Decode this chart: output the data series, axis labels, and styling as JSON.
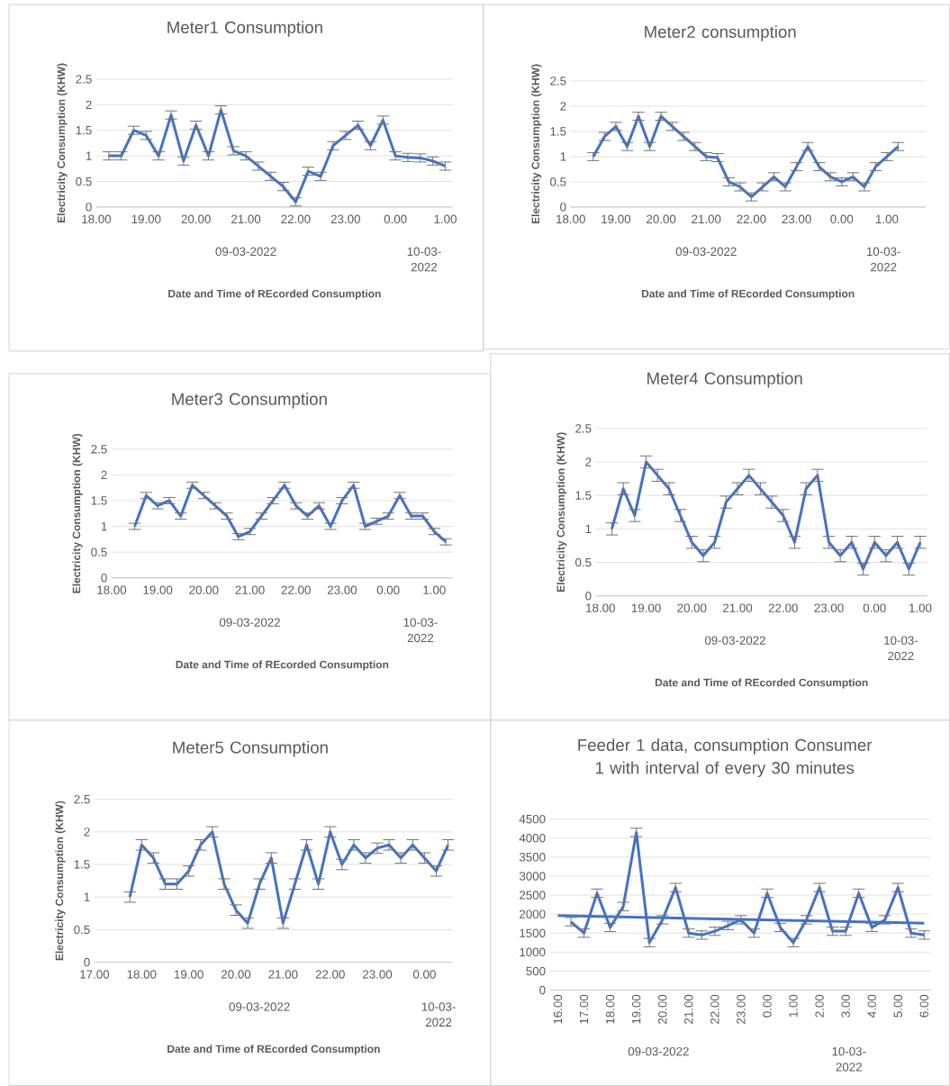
{
  "chart_data": [
    {
      "type": "line",
      "title": "Meter1 Consumption",
      "xlabel": "Date and Time of REcorded Consumption",
      "ylabel": "Electricity Consumption (KHW)",
      "xlim": [
        "2022-03-09T18:00",
        "2022-03-10T01:09"
      ],
      "ylim": [
        0,
        2.5
      ],
      "grid": "y",
      "xticks": [
        {
          "value": "2022-03-09T18:00",
          "label": "18.00"
        },
        {
          "value": "2022-03-09T19:00",
          "label": "19.00"
        },
        {
          "value": "2022-03-09T20:00",
          "label": "20.00"
        },
        {
          "value": "2022-03-09T21:00",
          "label": "21.00"
        },
        {
          "value": "2022-03-09T22:00",
          "label": "22.00"
        },
        {
          "value": "2022-03-09T23:00",
          "label": "23.00"
        },
        {
          "value": "2022-03-10T00:00",
          "label": "0.00"
        },
        {
          "value": "2022-03-10T01:00",
          "label": "1.00"
        }
      ],
      "yticks": [
        0,
        0.5,
        1,
        1.5,
        2,
        2.5
      ],
      "annotations": [
        "09-03-2022",
        "10-03-2022"
      ],
      "series": [
        {
          "color": "#4472c4",
          "x": [
            "2022-03-09T18:15",
            "2022-03-09T18:30",
            "2022-03-09T18:45",
            "2022-03-09T19:00",
            "2022-03-09T19:15",
            "2022-03-09T19:30",
            "2022-03-09T19:45",
            "2022-03-09T20:00",
            "2022-03-09T20:15",
            "2022-03-09T20:30",
            "2022-03-09T20:45",
            "2022-03-09T21:00",
            "2022-03-09T21:15",
            "2022-03-09T21:30",
            "2022-03-09T21:45",
            "2022-03-09T22:00",
            "2022-03-09T22:15",
            "2022-03-09T22:30",
            "2022-03-09T22:45",
            "2022-03-09T23:00",
            "2022-03-09T23:15",
            "2022-03-09T23:30",
            "2022-03-09T23:45",
            "2022-03-10T00:00",
            "2022-03-10T00:15",
            "2022-03-10T00:30",
            "2022-03-10T00:45",
            "2022-03-10T01:00"
          ],
          "values": [
            1.0,
            1.0,
            1.5,
            1.4,
            1.0,
            1.8,
            0.9,
            1.6,
            1.0,
            1.9,
            1.1,
            1.0,
            0.8,
            0.6,
            0.4,
            0.1,
            0.7,
            0.6,
            1.2,
            1.4,
            1.6,
            1.2,
            1.7,
            1.0,
            0.97,
            0.96,
            0.9,
            0.8
          ],
          "errors": [
            0.08,
            0.08,
            0.08,
            0.08,
            0.08,
            0.08,
            0.08,
            0.08,
            0.08,
            0.08,
            0.08,
            0.08,
            0.08,
            0.08,
            0.08,
            0.08,
            0.08,
            0.08,
            0.08,
            0.08,
            0.08,
            0.08,
            0.08,
            0.08,
            0.08,
            0.08,
            0.08,
            0.08
          ]
        }
      ]
    },
    {
      "type": "line",
      "title": "Meter2 consumption",
      "xlabel": "Date and Time of REcorded Consumption",
      "ylabel": "Electricity Consumption (KHW)",
      "xlim": [
        "2022-03-09T18:00",
        "2022-03-10T01:51"
      ],
      "ylim": [
        0,
        2.5
      ],
      "grid": "y",
      "xticks": [
        {
          "value": "2022-03-09T18:00",
          "label": "18.00"
        },
        {
          "value": "2022-03-09T19:00",
          "label": "19.00"
        },
        {
          "value": "2022-03-09T20:00",
          "label": "20.00"
        },
        {
          "value": "2022-03-09T21:00",
          "label": "21.00"
        },
        {
          "value": "2022-03-09T22:00",
          "label": "22.00"
        },
        {
          "value": "2022-03-09T23:00",
          "label": "23.00"
        },
        {
          "value": "2022-03-10T00:00",
          "label": "0.00"
        },
        {
          "value": "2022-03-10T01:00",
          "label": "1.00"
        }
      ],
      "yticks": [
        0,
        0.5,
        1,
        1.5,
        2,
        2.5
      ],
      "annotations": [
        "09-03-2022",
        "10-03-2022"
      ],
      "series": [
        {
          "color": "#4472c4",
          "x": [
            "2022-03-09T18:30",
            "2022-03-09T18:45",
            "2022-03-09T19:00",
            "2022-03-09T19:15",
            "2022-03-09T19:30",
            "2022-03-09T19:45",
            "2022-03-09T20:00",
            "2022-03-09T20:15",
            "2022-03-09T20:30",
            "2022-03-09T20:45",
            "2022-03-09T21:00",
            "2022-03-09T21:15",
            "2022-03-09T21:30",
            "2022-03-09T21:45",
            "2022-03-09T22:00",
            "2022-03-09T22:15",
            "2022-03-09T22:30",
            "2022-03-09T22:45",
            "2022-03-09T23:00",
            "2022-03-09T23:15",
            "2022-03-09T23:30",
            "2022-03-09T23:45",
            "2022-03-10T00:00",
            "2022-03-10T00:15",
            "2022-03-10T00:30",
            "2022-03-10T00:45",
            "2022-03-10T01:00",
            "2022-03-10T01:15"
          ],
          "values": [
            1.0,
            1.4,
            1.6,
            1.2,
            1.8,
            1.2,
            1.8,
            1.6,
            1.4,
            1.2,
            1.0,
            0.98,
            0.5,
            0.4,
            0.2,
            0.4,
            0.6,
            0.4,
            0.8,
            1.2,
            0.8,
            0.6,
            0.5,
            0.6,
            0.4,
            0.8,
            1.0,
            1.2
          ],
          "errors": [
            0.08,
            0.08,
            0.08,
            0.08,
            0.08,
            0.08,
            0.08,
            0.08,
            0.08,
            0.08,
            0.08,
            0.08,
            0.08,
            0.08,
            0.08,
            0.08,
            0.08,
            0.08,
            0.08,
            0.08,
            0.08,
            0.08,
            0.08,
            0.08,
            0.08,
            0.08,
            0.08,
            0.08
          ]
        }
      ]
    },
    {
      "type": "line",
      "title": "Meter3 Consumption",
      "xlabel": "Date and Time of REcorded Consumption",
      "ylabel": "Electricity Consumption (KHW)",
      "xlim": [
        "2022-03-09T18:00",
        "2022-03-10T01:24"
      ],
      "ylim": [
        0,
        2.5
      ],
      "grid": "y",
      "xticks": [
        {
          "value": "2022-03-09T18:00",
          "label": "18.00"
        },
        {
          "value": "2022-03-09T19:00",
          "label": "19.00"
        },
        {
          "value": "2022-03-09T20:00",
          "label": "20.00"
        },
        {
          "value": "2022-03-09T21:00",
          "label": "21.00"
        },
        {
          "value": "2022-03-09T22:00",
          "label": "22.00"
        },
        {
          "value": "2022-03-09T23:00",
          "label": "23.00"
        },
        {
          "value": "2022-03-10T00:00",
          "label": "0.00"
        },
        {
          "value": "2022-03-10T01:00",
          "label": "1.00"
        }
      ],
      "yticks": [
        0,
        0.5,
        1,
        1.5,
        2,
        2.5
      ],
      "annotations": [
        "09-03-2022",
        "10-03-2022"
      ],
      "series": [
        {
          "color": "#4472c4",
          "x": [
            "2022-03-09T18:30",
            "2022-03-09T18:45",
            "2022-03-09T19:00",
            "2022-03-09T19:15",
            "2022-03-09T19:30",
            "2022-03-09T19:45",
            "2022-03-09T20:00",
            "2022-03-09T20:15",
            "2022-03-09T20:30",
            "2022-03-09T20:45",
            "2022-03-09T21:00",
            "2022-03-09T21:15",
            "2022-03-09T21:30",
            "2022-03-09T21:45",
            "2022-03-09T22:00",
            "2022-03-09T22:15",
            "2022-03-09T22:30",
            "2022-03-09T22:45",
            "2022-03-09T23:00",
            "2022-03-09T23:15",
            "2022-03-09T23:30",
            "2022-03-09T23:45",
            "2022-03-10T00:00",
            "2022-03-10T00:15",
            "2022-03-10T00:30",
            "2022-03-10T00:45",
            "2022-03-10T01:00",
            "2022-03-10T01:15"
          ],
          "values": [
            1.0,
            1.6,
            1.4,
            1.5,
            1.2,
            1.8,
            1.6,
            1.4,
            1.2,
            0.8,
            0.9,
            1.2,
            1.5,
            1.8,
            1.4,
            1.2,
            1.4,
            1.0,
            1.5,
            1.8,
            1.0,
            1.1,
            1.2,
            1.6,
            1.2,
            1.2,
            0.9,
            0.7
          ],
          "errors": [
            0.06,
            0.06,
            0.06,
            0.06,
            0.06,
            0.06,
            0.06,
            0.06,
            0.06,
            0.06,
            0.06,
            0.06,
            0.06,
            0.06,
            0.06,
            0.06,
            0.06,
            0.06,
            0.06,
            0.06,
            0.06,
            0.06,
            0.06,
            0.06,
            0.06,
            0.06,
            0.06,
            0.06
          ]
        }
      ]
    },
    {
      "type": "line",
      "title": "Meter4 Consumption",
      "xlabel": "Date and Time of REcorded Consumption",
      "ylabel": "Electricity Consumption (KHW)",
      "xlim": [
        "2022-03-09T17:54",
        "2022-03-10T01:09"
      ],
      "ylim": [
        0,
        2.5
      ],
      "grid": "y",
      "xticks": [
        {
          "value": "2022-03-09T18:00",
          "label": "18.00"
        },
        {
          "value": "2022-03-09T19:00",
          "label": "19.00"
        },
        {
          "value": "2022-03-09T20:00",
          "label": "20.00"
        },
        {
          "value": "2022-03-09T21:00",
          "label": "21.00"
        },
        {
          "value": "2022-03-09T22:00",
          "label": "22.00"
        },
        {
          "value": "2022-03-09T23:00",
          "label": "23.00"
        },
        {
          "value": "2022-03-10T00:00",
          "label": "0.00"
        },
        {
          "value": "2022-03-10T01:00",
          "label": "1.00"
        }
      ],
      "yticks": [
        0,
        0.5,
        1,
        1.5,
        2,
        2.5
      ],
      "annotations": [
        "09-03-2022",
        "10-03-2022"
      ],
      "series": [
        {
          "color": "#4472c4",
          "x": [
            "2022-03-09T18:15",
            "2022-03-09T18:30",
            "2022-03-09T18:45",
            "2022-03-09T19:00",
            "2022-03-09T19:15",
            "2022-03-09T19:30",
            "2022-03-09T19:45",
            "2022-03-09T20:00",
            "2022-03-09T20:15",
            "2022-03-09T20:30",
            "2022-03-09T20:45",
            "2022-03-09T21:00",
            "2022-03-09T21:15",
            "2022-03-09T21:30",
            "2022-03-09T21:45",
            "2022-03-09T22:00",
            "2022-03-09T22:15",
            "2022-03-09T22:30",
            "2022-03-09T22:45",
            "2022-03-09T23:00",
            "2022-03-09T23:15",
            "2022-03-09T23:30",
            "2022-03-09T23:45",
            "2022-03-10T00:00",
            "2022-03-10T00:15",
            "2022-03-10T00:30",
            "2022-03-10T00:45",
            "2022-03-10T01:00"
          ],
          "values": [
            1.0,
            1.6,
            1.2,
            2.0,
            1.8,
            1.6,
            1.2,
            0.8,
            0.6,
            0.8,
            1.4,
            1.6,
            1.8,
            1.6,
            1.4,
            1.2,
            0.8,
            1.6,
            1.8,
            0.8,
            0.6,
            0.8,
            0.4,
            0.8,
            0.6,
            0.8,
            0.4,
            0.8
          ],
          "errors": [
            0.09,
            0.09,
            0.09,
            0.09,
            0.09,
            0.09,
            0.09,
            0.09,
            0.09,
            0.09,
            0.09,
            0.09,
            0.09,
            0.09,
            0.09,
            0.09,
            0.09,
            0.09,
            0.09,
            0.09,
            0.09,
            0.09,
            0.09,
            0.09,
            0.09,
            0.09,
            0.09,
            0.09
          ]
        }
      ]
    },
    {
      "type": "line",
      "title": "Meter5 Consumption",
      "xlabel": "Date and Time of REcorded Consumption",
      "ylabel": "Electricity Consumption (KHW)",
      "xlim": [
        "2022-03-09T17:00",
        "2022-03-10T00:36"
      ],
      "ylim": [
        0,
        2.5
      ],
      "grid": "y",
      "xticks": [
        {
          "value": "2022-03-09T17:00",
          "label": "17.00"
        },
        {
          "value": "2022-03-09T18:00",
          "label": "18.00"
        },
        {
          "value": "2022-03-09T19:00",
          "label": "19.00"
        },
        {
          "value": "2022-03-09T20:00",
          "label": "20.00"
        },
        {
          "value": "2022-03-09T21:00",
          "label": "21.00"
        },
        {
          "value": "2022-03-09T22:00",
          "label": "22.00"
        },
        {
          "value": "2022-03-09T23:00",
          "label": "23.00"
        },
        {
          "value": "2022-03-10T00:00",
          "label": "0.00"
        }
      ],
      "yticks": [
        0,
        0.5,
        1,
        1.5,
        2,
        2.5
      ],
      "annotations": [
        "09-03-2022",
        "10-03-2022"
      ],
      "series": [
        {
          "color": "#4472c4",
          "x": [
            "2022-03-09T17:45",
            "2022-03-09T18:00",
            "2022-03-09T18:15",
            "2022-03-09T18:30",
            "2022-03-09T18:45",
            "2022-03-09T19:00",
            "2022-03-09T19:15",
            "2022-03-09T19:30",
            "2022-03-09T19:45",
            "2022-03-09T20:00",
            "2022-03-09T20:15",
            "2022-03-09T20:30",
            "2022-03-09T20:45",
            "2022-03-09T21:00",
            "2022-03-09T21:15",
            "2022-03-09T21:30",
            "2022-03-09T21:45",
            "2022-03-09T22:00",
            "2022-03-09T22:15",
            "2022-03-09T22:30",
            "2022-03-09T22:45",
            "2022-03-09T23:00",
            "2022-03-09T23:15",
            "2022-03-09T23:30",
            "2022-03-09T23:45",
            "2022-03-10T00:00",
            "2022-03-10T00:15",
            "2022-03-10T00:30"
          ],
          "values": [
            1.0,
            1.8,
            1.6,
            1.2,
            1.2,
            1.4,
            1.8,
            2.0,
            1.2,
            0.8,
            0.6,
            1.2,
            1.6,
            0.6,
            1.2,
            1.8,
            1.2,
            2.0,
            1.5,
            1.8,
            1.6,
            1.75,
            1.8,
            1.6,
            1.8,
            1.6,
            1.4,
            1.8
          ],
          "errors": [
            0.08,
            0.08,
            0.08,
            0.08,
            0.08,
            0.08,
            0.08,
            0.08,
            0.08,
            0.08,
            0.08,
            0.08,
            0.08,
            0.08,
            0.08,
            0.08,
            0.08,
            0.08,
            0.08,
            0.08,
            0.08,
            0.08,
            0.08,
            0.08,
            0.08,
            0.08,
            0.08,
            0.08
          ]
        }
      ]
    },
    {
      "type": "line",
      "title": "Feeder 1 data, consumption Consumer 1 with interval of every 30 minutes",
      "xlim": [
        "2022-03-09T15:42",
        "2022-03-10T06:15"
      ],
      "ylim": [
        0,
        4500
      ],
      "grid": "y",
      "xticks": [
        {
          "value": "2022-03-09T16:00",
          "label": "16.00"
        },
        {
          "value": "2022-03-09T17:00",
          "label": "17.00"
        },
        {
          "value": "2022-03-09T18:00",
          "label": "18.00"
        },
        {
          "value": "2022-03-09T19:00",
          "label": "19.00"
        },
        {
          "value": "2022-03-09T20:00",
          "label": "20.00"
        },
        {
          "value": "2022-03-09T21:00",
          "label": "21.00"
        },
        {
          "value": "2022-03-09T22:00",
          "label": "22.00"
        },
        {
          "value": "2022-03-09T23:00",
          "label": "23.00"
        },
        {
          "value": "2022-03-10T00:00",
          "label": "0.00"
        },
        {
          "value": "2022-03-10T01:00",
          "label": "1.00"
        },
        {
          "value": "2022-03-10T02:00",
          "label": "2.00"
        },
        {
          "value": "2022-03-10T03:00",
          "label": "3.00"
        },
        {
          "value": "2022-03-10T04:00",
          "label": "4.00"
        },
        {
          "value": "2022-03-10T05:00",
          "label": "5.00"
        },
        {
          "value": "2022-03-10T06:00",
          "label": "6.00"
        }
      ],
      "yticks": [
        0,
        500,
        1000,
        1500,
        2000,
        2500,
        3000,
        3500,
        4000,
        4500
      ],
      "annotations": [
        "09-03-2022",
        "10-03-2022"
      ],
      "series": [
        {
          "color": "#4472c4",
          "x": [
            "2022-03-09T16:30",
            "2022-03-09T17:00",
            "2022-03-09T17:30",
            "2022-03-09T18:00",
            "2022-03-09T18:30",
            "2022-03-09T19:00",
            "2022-03-09T19:30",
            "2022-03-09T20:00",
            "2022-03-09T20:30",
            "2022-03-09T21:00",
            "2022-03-09T21:30",
            "2022-03-09T22:00",
            "2022-03-09T22:30",
            "2022-03-09T23:00",
            "2022-03-09T23:30",
            "2022-03-10T00:00",
            "2022-03-10T00:30",
            "2022-03-10T01:00",
            "2022-03-10T01:30",
            "2022-03-10T02:00",
            "2022-03-10T02:30",
            "2022-03-10T03:00",
            "2022-03-10T03:30",
            "2022-03-10T04:00",
            "2022-03-10T04:30",
            "2022-03-10T05:00",
            "2022-03-10T05:30",
            "2022-03-10T06:00"
          ],
          "values": [
            1800,
            1500,
            2550,
            1650,
            2200,
            4150,
            1250,
            1850,
            2700,
            1500,
            1450,
            1550,
            1700,
            1850,
            1500,
            2550,
            1650,
            1250,
            1850,
            2700,
            1550,
            1550,
            2550,
            1650,
            1850,
            2700,
            1500,
            1450
          ],
          "errors": [
            110,
            110,
            110,
            110,
            110,
            110,
            110,
            110,
            110,
            110,
            110,
            110,
            110,
            110,
            110,
            110,
            110,
            110,
            110,
            110,
            110,
            110,
            110,
            110,
            110,
            110,
            110,
            110
          ]
        },
        {
          "type": "line",
          "color": "#4472c4",
          "x": [
            "2022-03-09T16:00",
            "2022-03-10T06:00"
          ],
          "values": [
            1960,
            1760
          ]
        }
      ]
    }
  ]
}
